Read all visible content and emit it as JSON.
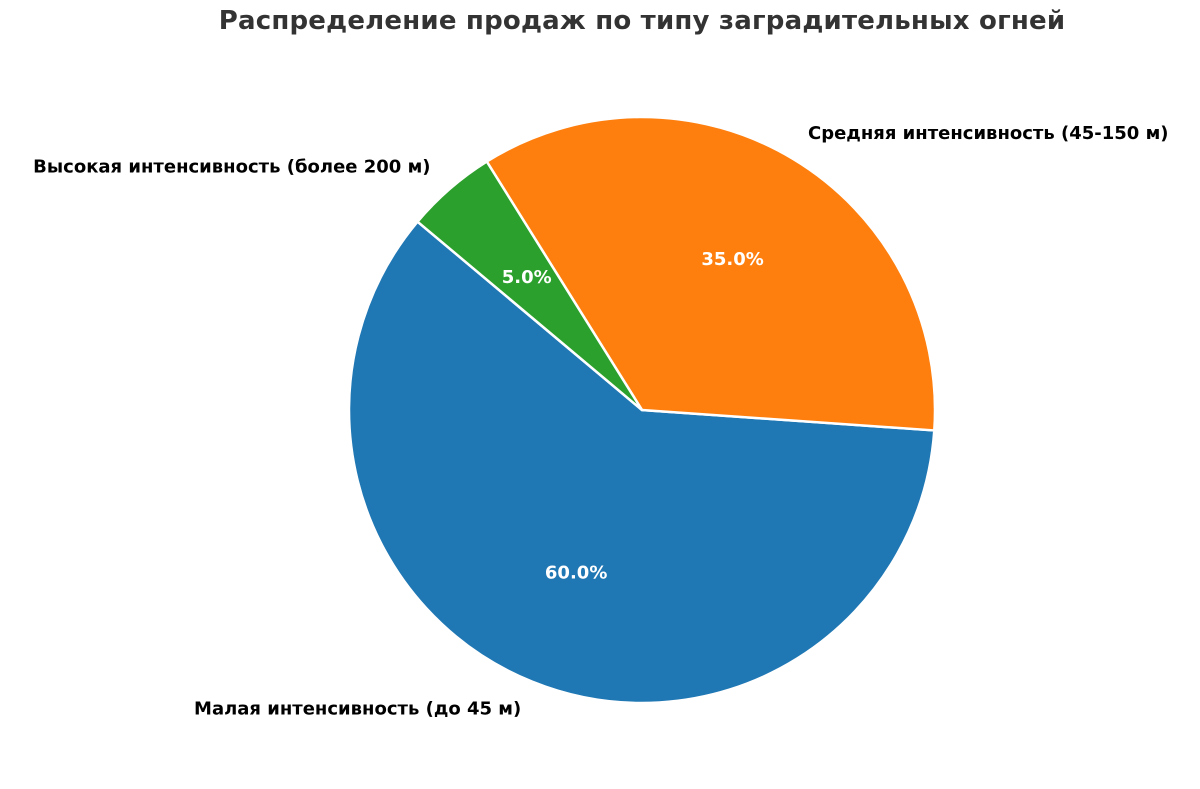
{
  "chart_data": {
    "type": "pie",
    "title": "Распределение продаж по типу заградительных огней",
    "categories": [
      "Малая интенсивность (до 45 м)",
      "Средняя интенсивность (45-150 м)",
      "Высокая интенсивность (более 200 м)"
    ],
    "values": [
      60.0,
      35.0,
      5.0
    ],
    "percent_labels": [
      "60.0%",
      "35.0%",
      "5.0%"
    ],
    "colors": [
      "#1f77b4",
      "#ff7f0e",
      "#2ca02c"
    ],
    "start_angle_deg": 140,
    "direction": "counterclockwise",
    "legend": "none"
  }
}
